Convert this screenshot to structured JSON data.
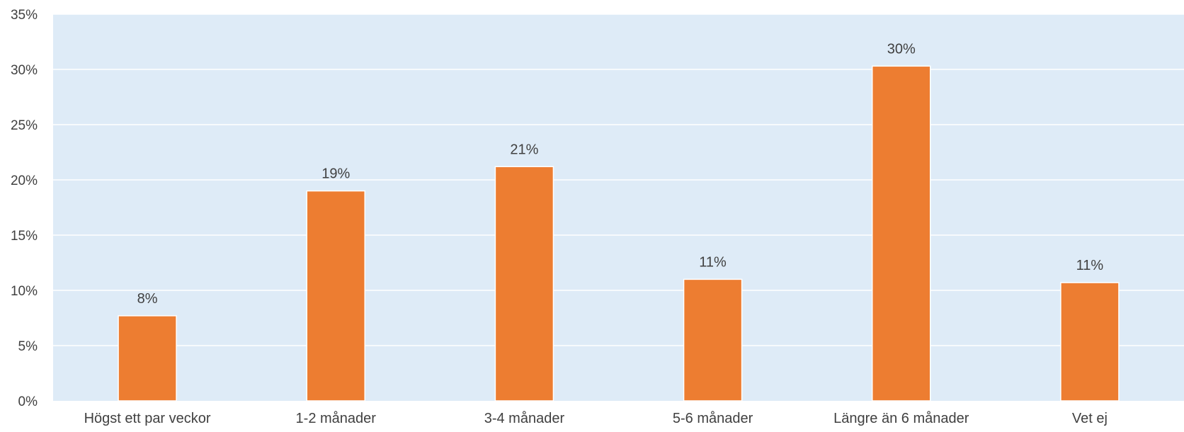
{
  "chart_data": {
    "type": "bar",
    "title": "",
    "xlabel": "",
    "ylabel": "",
    "categories": [
      "Högst ett par veckor",
      "1-2 månader",
      "3-4 månader",
      "5-6 månader",
      "Längre än 6 månader",
      "Vet ej"
    ],
    "values": [
      7.7,
      19.0,
      21.2,
      11.0,
      30.3,
      10.7
    ],
    "data_labels": [
      "8%",
      "19%",
      "21%",
      "11%",
      "30%",
      "11%"
    ],
    "ylim": [
      0,
      35
    ],
    "yticks": [
      0,
      5,
      10,
      15,
      20,
      25,
      30,
      35
    ],
    "ytick_labels": [
      "0%",
      "5%",
      "10%",
      "15%",
      "20%",
      "25%",
      "30%",
      "35%"
    ],
    "grid": true,
    "legend": "none",
    "colors": {
      "bar": "#ED7D31",
      "plot_background": "#DEEBF7",
      "gridline": "#FFFFFF",
      "text": "#404040"
    }
  }
}
